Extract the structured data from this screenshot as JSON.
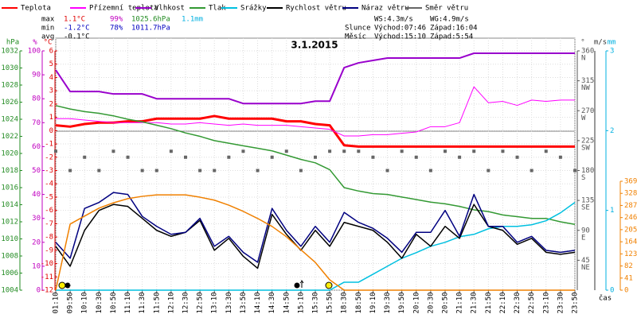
{
  "chart_data": {
    "type": "line",
    "title": "3.1.2015",
    "x_label": "čas",
    "categories": [
      "01:10",
      "09:50",
      "10:10",
      "10:30",
      "10:50",
      "11:10",
      "11:30",
      "11:50",
      "12:10",
      "12:30",
      "12:50",
      "13:10",
      "13:30",
      "13:50",
      "14:10",
      "14:30",
      "14:50",
      "15:10",
      "15:30",
      "15:50",
      "18:30",
      "18:50",
      "19:10",
      "19:30",
      "19:50",
      "20:10",
      "20:30",
      "20:50",
      "21:10",
      "21:30",
      "21:50",
      "22:10",
      "22:30",
      "22:50",
      "23:10",
      "23:30",
      "23:50"
    ],
    "axes": {
      "hpa": {
        "title": "hPa",
        "color": "#228b22",
        "lim": [
          1004,
          1032
        ],
        "ticks": [
          1032,
          1030,
          1028,
          1026,
          1024,
          1022,
          1020,
          1018,
          1016,
          1014,
          1012,
          1010,
          1008,
          1006,
          1004
        ]
      },
      "pct": {
        "title": "%",
        "color": "#c000c0",
        "lim": [
          0,
          100
        ],
        "ticks": [
          100,
          90,
          80,
          70,
          60,
          50,
          40,
          30,
          20,
          10,
          0
        ]
      },
      "temp": {
        "title": "°C",
        "color": "#e00000",
        "lim": [
          -12,
          6
        ],
        "ticks": [
          6,
          5,
          4,
          3,
          2,
          1,
          0,
          -1,
          -2,
          -3,
          -4,
          -5,
          -6,
          -7,
          -8,
          -9,
          -10,
          -11,
          -12
        ]
      },
      "dir": {
        "title": "°",
        "color": "#555555",
        "lim": [
          0,
          360
        ],
        "ticks": [
          360,
          315,
          270,
          225,
          180,
          135,
          90,
          45
        ],
        "tick_names": [
          "N",
          "NW",
          "W",
          "SW",
          "S",
          "SE",
          "E",
          "NE"
        ]
      },
      "ws": {
        "title": "m/s",
        "color": "#333333",
        "lim": [
          0,
          12
        ]
      },
      "mm": {
        "title": "mm",
        "color": "#00b0e0",
        "lim": [
          0,
          3
        ],
        "ticks": [
          3,
          2,
          1,
          0
        ]
      },
      "sun": {
        "color": "#f08000",
        "lim": [
          0,
          369
        ],
        "ticks": [
          369,
          328,
          287,
          246,
          205,
          164,
          123,
          82,
          41,
          0
        ]
      }
    },
    "series": [
      {
        "name": "Teplota",
        "color": "#ff0000",
        "axis": "temp",
        "width": 3,
        "values": [
          0.4,
          0.3,
          0.5,
          0.6,
          0.6,
          0.7,
          0.7,
          0.9,
          0.9,
          0.9,
          0.9,
          1.1,
          0.9,
          0.9,
          0.9,
          0.9,
          0.7,
          0.7,
          0.5,
          0.4,
          -1.1,
          -1.2,
          -1.2,
          -1.2,
          -1.2,
          -1.2,
          -1.2,
          -1.2,
          -1.2,
          -1.2,
          -1.2,
          -1.2,
          -1.2,
          -1.2,
          -1.2,
          -1.2,
          -1.2
        ]
      },
      {
        "name": "Přízemní teplota",
        "color": "#ff00ff",
        "axis": "temp",
        "width": 1,
        "values": [
          0.9,
          0.9,
          0.8,
          0.7,
          0.6,
          0.6,
          0.6,
          0.6,
          0.5,
          0.5,
          0.6,
          0.5,
          0.4,
          0.5,
          0.4,
          0.4,
          0.4,
          0.3,
          0.2,
          0.1,
          -0.4,
          -0.4,
          -0.3,
          -0.3,
          -0.2,
          -0.1,
          0.3,
          0.3,
          0.6,
          3.3,
          2.1,
          2.2,
          1.9,
          2.3,
          2.2,
          2.3,
          2.3
        ]
      },
      {
        "name": "Vlhkost",
        "color": "#9900cc",
        "axis": "pct",
        "width": 2,
        "values": [
          92,
          83,
          83,
          83,
          82,
          82,
          82,
          80,
          80,
          80,
          80,
          80,
          80,
          78,
          78,
          78,
          78,
          78,
          79,
          79,
          93,
          95,
          96,
          97,
          97,
          97,
          97,
          97,
          97,
          99,
          99,
          99,
          99,
          99,
          99,
          99,
          99
        ]
      },
      {
        "name": "Tlak",
        "color": "#339933",
        "axis": "hpa",
        "width": 1.5,
        "values": [
          1025.6,
          1025.2,
          1024.9,
          1024.7,
          1024.4,
          1024.0,
          1023.7,
          1023.3,
          1022.9,
          1022.4,
          1022.0,
          1021.5,
          1021.2,
          1020.9,
          1020.6,
          1020.3,
          1019.8,
          1019.3,
          1018.9,
          1018.1,
          1016.0,
          1015.6,
          1015.3,
          1015.2,
          1014.9,
          1014.6,
          1014.3,
          1014.1,
          1013.8,
          1013.4,
          1013.2,
          1012.8,
          1012.6,
          1012.4,
          1012.4,
          1012.0,
          1011.7
        ]
      },
      {
        "name": "Srážky",
        "color": "#00c0e0",
        "axis": "mm",
        "width": 1.5,
        "values": [
          0,
          0,
          0,
          0,
          0,
          0,
          0,
          0,
          0,
          0,
          0,
          0,
          0,
          0,
          0,
          0,
          0,
          0,
          0,
          0,
          0.1,
          0.1,
          0.2,
          0.3,
          0.4,
          0.47,
          0.55,
          0.6,
          0.67,
          0.7,
          0.77,
          0.8,
          0.8,
          0.82,
          0.87,
          0.97,
          1.1
        ]
      },
      {
        "name": "Rychlost větru",
        "color": "#000000",
        "axis": "ws",
        "width": 1.5,
        "values": [
          2.2,
          1.2,
          3.0,
          4.0,
          4.3,
          4.2,
          3.6,
          3.0,
          2.7,
          2.9,
          3.5,
          2.0,
          2.6,
          1.7,
          1.1,
          3.8,
          2.8,
          2.0,
          3.0,
          2.2,
          3.4,
          3.2,
          3.0,
          2.4,
          1.6,
          2.8,
          2.2,
          3.2,
          2.6,
          4.3,
          3.2,
          3.0,
          2.3,
          2.6,
          1.9,
          1.8,
          1.9
        ]
      },
      {
        "name": "Náraz větru",
        "color": "#000080",
        "axis": "ws",
        "width": 1.5,
        "values": [
          2.4,
          1.6,
          4.1,
          4.4,
          4.9,
          4.8,
          3.7,
          3.2,
          2.8,
          2.9,
          3.6,
          2.2,
          2.7,
          1.9,
          1.4,
          4.1,
          3.0,
          2.2,
          3.2,
          2.4,
          3.9,
          3.4,
          3.1,
          2.6,
          1.9,
          2.9,
          2.9,
          4.0,
          2.7,
          4.8,
          3.2,
          3.2,
          2.4,
          2.7,
          2.0,
          1.9,
          2.0
        ]
      },
      {
        "name": "Směr větru",
        "color": "#666666",
        "axis": "dir",
        "mark": "square",
        "values": [
          209,
          180,
          200,
          180,
          209,
          200,
          180,
          180,
          209,
          200,
          180,
          180,
          200,
          209,
          180,
          200,
          209,
          180,
          200,
          209,
          209,
          209,
          200,
          180,
          209,
          200,
          180,
          209,
          200,
          209,
          180,
          209,
          200,
          180,
          209,
          200,
          180
        ]
      },
      {
        "color": "#f08000",
        "axis": "sun",
        "width": 1.5,
        "values": [
          0,
          224,
          251,
          278,
          296,
          310,
          318,
          323,
          323,
          323,
          315,
          305,
          288,
          267,
          243,
          216,
          181,
          137,
          94,
          35,
          0,
          0,
          0,
          0,
          0,
          0,
          0,
          0,
          0,
          0,
          0,
          0,
          0,
          0,
          0,
          0,
          0
        ]
      }
    ],
    "stats": {
      "max": {
        "label": "max",
        "temp": "1.1°C",
        "hum": "99%",
        "press": "1025.6hPa",
        "rain": "1.1mm"
      },
      "min": {
        "label": "min",
        "temp": "-1.2°C",
        "hum": "78%",
        "press": "1011.7hPa"
      },
      "avg": {
        "label": "avg",
        "temp": "-0.1°C"
      }
    },
    "info": {
      "ws": "WS:4.3m/s",
      "wg": "WG:4.9m/s",
      "sun": {
        "label": "Slunce",
        "rise": "Východ:07:46",
        "set": "Západ:16:04"
      },
      "moon": {
        "label": "Měsíc",
        "rise": "Východ:15:10",
        "set": "Západ:5:54"
      }
    }
  }
}
